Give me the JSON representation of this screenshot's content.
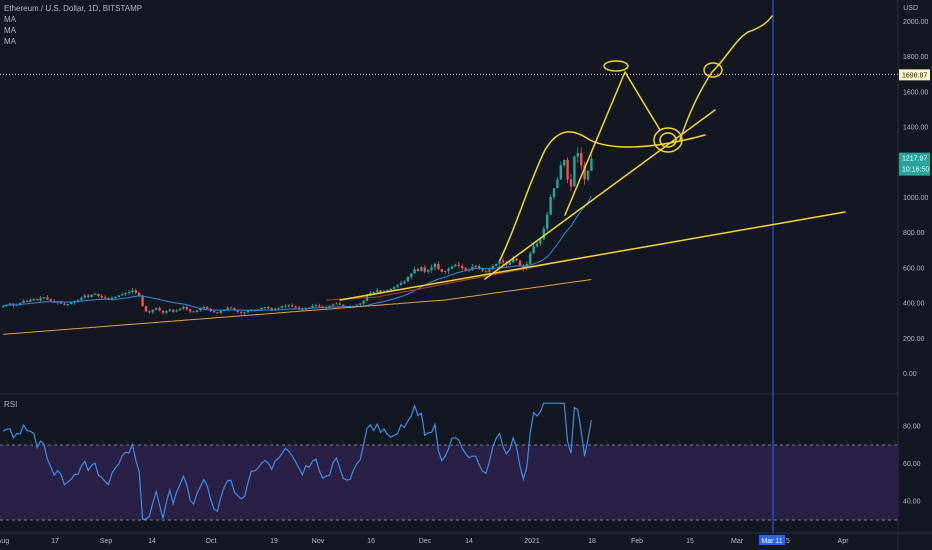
{
  "header": {
    "symbol_title": "Ethereum / U.S. Dollar, 1D, BITSTAMP",
    "indicators": [
      "MA",
      "MA",
      "MA"
    ],
    "currency": "USD"
  },
  "rsi_panel": {
    "label": "RSI",
    "ticks": [
      "80.00",
      "60.00",
      "40.00"
    ],
    "color": "#3a8ee6",
    "fill": "#2a1f44"
  },
  "price_tags": {
    "horizontal_line": "1696.87",
    "last_price": "1217.97",
    "countdown": "10:16:50"
  },
  "time_marker": "Mar 11",
  "colors": {
    "background": "#131722",
    "up": "#26a69a",
    "down": "#ef5350",
    "drawing": "#f5d81f",
    "ma_fast": "#2f80d1",
    "ma_mid": "#c0392b",
    "ma_slow": "#e6a23c",
    "last_tag": "#26a69a",
    "vertical_marker": "#2962ff"
  },
  "chart_data": {
    "type": "candlestick",
    "y_ticks": [
      "2000.00",
      "1800.00",
      "1600.00",
      "1400.00",
      "1200.00",
      "1000.00",
      "800.00",
      "600.00",
      "400.00",
      "200.00",
      "0.00"
    ],
    "ylim": [
      -40,
      2040
    ],
    "x_ticks": [
      "Aug",
      "17",
      "Sep",
      "14",
      "Oct",
      "19",
      "Nov",
      "16",
      "Dec",
      "14",
      "2021",
      "18",
      "Feb",
      "15",
      "Mar",
      "15",
      "Apr"
    ],
    "close": [
      380,
      388,
      395,
      383,
      390,
      398,
      410,
      405,
      415,
      420,
      412,
      425,
      430,
      418,
      410,
      400,
      405,
      395,
      388,
      392,
      400,
      410,
      415,
      428,
      440,
      432,
      445,
      450,
      438,
      430,
      425,
      420,
      428,
      432,
      440,
      448,
      455,
      460,
      470,
      455,
      440,
      380,
      350,
      345,
      360,
      370,
      355,
      342,
      352,
      360,
      348,
      355,
      366,
      375,
      362,
      350,
      345,
      356,
      368,
      375,
      365,
      352,
      345,
      340,
      352,
      360,
      372,
      368,
      356,
      348,
      340,
      345,
      352,
      360,
      355,
      362,
      370,
      375,
      368,
      360,
      365,
      370,
      378,
      382,
      385,
      378,
      372,
      365,
      360,
      368,
      372,
      380,
      385,
      378,
      370,
      375,
      382,
      390,
      395,
      388,
      380,
      372,
      375,
      382,
      388,
      395,
      410,
      440,
      455,
      460,
      470,
      458,
      465,
      470,
      478,
      490,
      500,
      510,
      520,
      545,
      565,
      590,
      580,
      600,
      575,
      585,
      600,
      620,
      590,
      575,
      580,
      592,
      605,
      615,
      608,
      595,
      585,
      590,
      602,
      608,
      595,
      580,
      575,
      590,
      608,
      620,
      640,
      628,
      615,
      630,
      650,
      640,
      612,
      595,
      620,
      680,
      720,
      735,
      760,
      820,
      900,
      1000,
      1050,
      1100,
      1180,
      1210,
      1100,
      1060,
      1230,
      1250,
      1180,
      1100,
      1150,
      1218
    ]
  }
}
